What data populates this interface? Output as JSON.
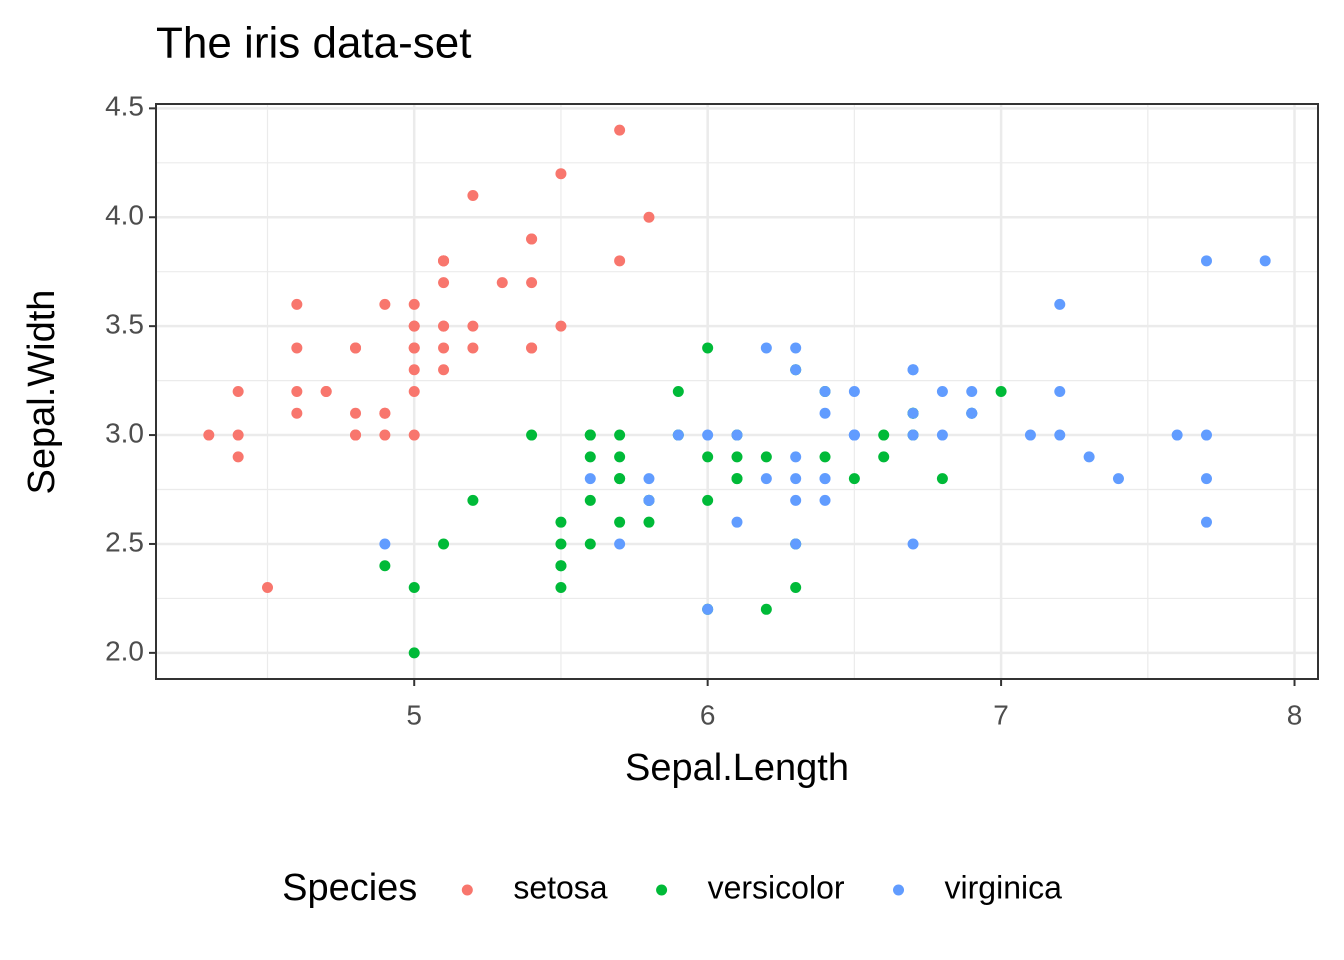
{
  "chart_data": {
    "type": "scatter",
    "title": "The iris data-set",
    "x_label": "Sepal.Length",
    "y_label": "Sepal.Width",
    "legend_title": "Species",
    "legend_position": "bottom",
    "grid": true,
    "xlim": [
      4.12,
      8.08
    ],
    "ylim": [
      1.88,
      4.52
    ],
    "xticks": [
      5,
      6,
      7,
      8
    ],
    "yticks": [
      {
        "value": 2,
        "label": "2.0"
      },
      2.5,
      {
        "value": 3,
        "label": "3.0"
      },
      3.5,
      {
        "value": 4,
        "label": "4.0"
      },
      4.5
    ],
    "x_minor_ticks": [
      4.5,
      5.5,
      6.5,
      7.5
    ],
    "y_minor_ticks": [
      2.25,
      2.75,
      3.25,
      3.75,
      4.25
    ],
    "series": [
      {
        "name": "setosa",
        "color": "#F8766D",
        "x": [
          5.1,
          4.9,
          4.7,
          4.6,
          5.0,
          5.4,
          4.6,
          5.0,
          4.4,
          4.9,
          5.4,
          4.8,
          4.8,
          4.3,
          5.8,
          5.7,
          5.4,
          5.1,
          5.7,
          5.1,
          5.4,
          5.1,
          4.6,
          5.1,
          4.8,
          5.0,
          5.0,
          5.2,
          5.2,
          4.7,
          4.8,
          5.4,
          5.2,
          5.5,
          4.9,
          5.0,
          5.5,
          4.9,
          4.4,
          5.1,
          5.0,
          4.5,
          4.4,
          5.0,
          5.1,
          4.8,
          5.1,
          4.6,
          5.3,
          5.0
        ],
        "values": [
          3.5,
          3.0,
          3.2,
          3.1,
          3.6,
          3.9,
          3.4,
          3.4,
          2.9,
          3.1,
          3.7,
          3.4,
          3.0,
          3.0,
          4.0,
          4.4,
          3.9,
          3.5,
          3.8,
          3.8,
          3.4,
          3.7,
          3.6,
          3.3,
          3.4,
          3.0,
          3.4,
          3.5,
          3.4,
          3.2,
          3.1,
          3.4,
          4.1,
          4.2,
          3.1,
          3.2,
          3.5,
          3.6,
          3.0,
          3.4,
          3.5,
          2.3,
          3.2,
          3.5,
          3.8,
          3.0,
          3.8,
          3.2,
          3.7,
          3.3
        ]
      },
      {
        "name": "versicolor",
        "color": "#00BA38",
        "x": [
          7.0,
          6.4,
          6.9,
          5.5,
          6.5,
          5.7,
          6.3,
          4.9,
          6.6,
          5.2,
          5.0,
          5.9,
          6.0,
          6.1,
          5.6,
          6.7,
          5.6,
          5.8,
          6.2,
          5.6,
          5.9,
          6.1,
          6.3,
          6.1,
          6.4,
          6.6,
          6.8,
          6.7,
          6.0,
          5.7,
          5.5,
          5.5,
          5.8,
          6.0,
          5.4,
          6.0,
          6.7,
          6.3,
          5.6,
          5.5,
          5.5,
          6.1,
          5.8,
          5.0,
          5.6,
          5.7,
          5.7,
          6.2,
          5.1,
          5.7
        ],
        "values": [
          3.2,
          3.2,
          3.1,
          2.3,
          2.8,
          2.8,
          3.3,
          2.4,
          2.9,
          2.7,
          2.0,
          3.0,
          2.2,
          2.9,
          2.9,
          3.1,
          3.0,
          2.7,
          2.2,
          2.5,
          3.2,
          2.8,
          2.5,
          2.8,
          2.9,
          3.0,
          2.8,
          3.0,
          2.9,
          2.6,
          2.4,
          2.4,
          2.7,
          2.7,
          3.0,
          3.4,
          3.1,
          2.3,
          3.0,
          2.5,
          2.6,
          3.0,
          2.6,
          2.3,
          2.7,
          3.0,
          2.9,
          2.9,
          2.5,
          2.8
        ]
      },
      {
        "name": "virginica",
        "color": "#619CFF",
        "x": [
          6.3,
          5.8,
          7.1,
          6.3,
          6.5,
          7.6,
          4.9,
          7.3,
          6.7,
          7.2,
          6.5,
          6.4,
          6.8,
          5.7,
          5.8,
          6.4,
          6.5,
          7.7,
          7.7,
          6.0,
          6.9,
          5.6,
          7.7,
          6.3,
          6.7,
          7.2,
          6.2,
          6.1,
          6.4,
          7.2,
          7.4,
          7.9,
          6.4,
          6.3,
          6.1,
          7.7,
          6.3,
          6.4,
          6.0,
          6.9,
          6.7,
          6.9,
          5.8,
          6.8,
          6.7,
          6.7,
          6.3,
          6.5,
          6.2,
          5.9
        ],
        "values": [
          3.3,
          2.7,
          3.0,
          2.9,
          3.0,
          3.0,
          2.5,
          2.9,
          2.5,
          3.6,
          3.2,
          2.7,
          3.0,
          2.5,
          2.8,
          3.2,
          3.0,
          3.8,
          2.6,
          2.2,
          3.2,
          2.8,
          2.8,
          2.7,
          3.3,
          3.2,
          2.8,
          3.0,
          2.8,
          3.0,
          2.8,
          3.8,
          2.8,
          2.8,
          2.6,
          3.0,
          3.4,
          3.1,
          3.0,
          3.1,
          3.1,
          3.1,
          2.7,
          3.2,
          3.3,
          3.0,
          2.5,
          3.0,
          3.4,
          3.0
        ]
      }
    ]
  }
}
